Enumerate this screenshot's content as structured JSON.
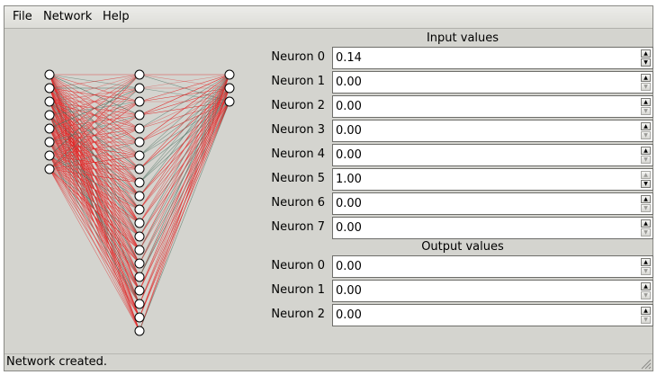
{
  "menu": {
    "file": "File",
    "network": "Network",
    "help": "Help"
  },
  "input_section": {
    "title": "Input values",
    "rows": [
      {
        "label": "Neuron 0",
        "value": "0.14",
        "up_enabled": true,
        "down_enabled": true
      },
      {
        "label": "Neuron 1",
        "value": "0.00",
        "up_enabled": true,
        "down_enabled": false
      },
      {
        "label": "Neuron 2",
        "value": "0.00",
        "up_enabled": true,
        "down_enabled": false
      },
      {
        "label": "Neuron 3",
        "value": "0.00",
        "up_enabled": true,
        "down_enabled": false
      },
      {
        "label": "Neuron 4",
        "value": "0.00",
        "up_enabled": true,
        "down_enabled": false
      },
      {
        "label": "Neuron 5",
        "value": "1.00",
        "up_enabled": false,
        "down_enabled": true
      },
      {
        "label": "Neuron 6",
        "value": "0.00",
        "up_enabled": true,
        "down_enabled": false
      },
      {
        "label": "Neuron 7",
        "value": "0.00",
        "up_enabled": true,
        "down_enabled": false
      }
    ]
  },
  "output_section": {
    "title": "Output values",
    "rows": [
      {
        "label": "Neuron 0",
        "value": "0.00",
        "up_enabled": true,
        "down_enabled": false
      },
      {
        "label": "Neuron 1",
        "value": "0.00",
        "up_enabled": true,
        "down_enabled": false
      },
      {
        "label": "Neuron 2",
        "value": "0.00",
        "up_enabled": true,
        "down_enabled": false
      }
    ]
  },
  "network": {
    "layer_sizes": [
      8,
      20,
      3
    ],
    "node_color": "#ffffff",
    "positive_weight_color": "#e02020",
    "negative_weight_color": "#406858"
  },
  "status": {
    "text": "Network created."
  }
}
